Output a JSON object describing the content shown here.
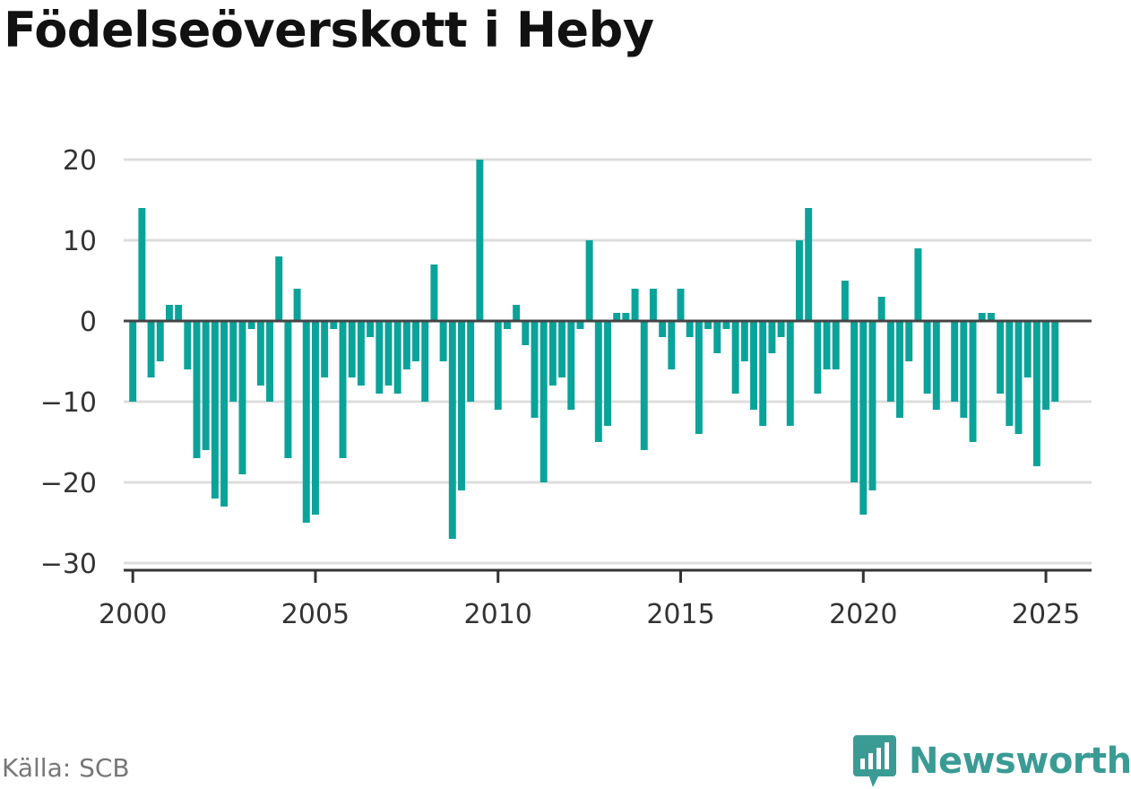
{
  "title": "Födelseöverskott i Heby",
  "source": "Källa: SCB",
  "brand": {
    "name": "Newsworthy",
    "icon": "newsworthy-logo-icon",
    "color": "#3a9b95"
  },
  "chart_data": {
    "type": "bar",
    "title": "Födelseöverskott i Heby",
    "xlabel": "",
    "ylabel": "",
    "x_start": 2000.0,
    "x_step": 0.25,
    "values": [
      -10,
      14,
      -7,
      -5,
      2,
      2,
      -6,
      -17,
      -16,
      -22,
      -23,
      -10,
      -19,
      -1,
      -8,
      -10,
      8,
      -17,
      4,
      -25,
      -24,
      -7,
      -1,
      -17,
      -7,
      -8,
      -2,
      -9,
      -8,
      -9,
      -6,
      -5,
      -10,
      7,
      -5,
      -27,
      -21,
      -10,
      20,
      0,
      -11,
      -1,
      2,
      -3,
      -12,
      -20,
      -8,
      -7,
      -11,
      -1,
      10,
      -15,
      -13,
      1,
      1,
      4,
      -16,
      4,
      -2,
      -6,
      4,
      -2,
      -14,
      -1,
      -4,
      -1,
      -9,
      -5,
      -11,
      -13,
      -4,
      -2,
      -13,
      10,
      14,
      -9,
      -6,
      -6,
      5,
      -20,
      -24,
      -21,
      3,
      -10,
      -12,
      -5,
      9,
      -9,
      -11,
      0,
      -10,
      -12,
      -15,
      1,
      1,
      -9,
      -13,
      -14,
      -7,
      -18,
      -11,
      -10
    ],
    "ylim": [
      -30,
      20
    ],
    "yticks": [
      20,
      10,
      0,
      -10,
      -20,
      -30
    ],
    "ytick_labels": [
      "20",
      "10",
      "0",
      "−10",
      "−20",
      "−30"
    ],
    "xlim": [
      1999.75,
      2026.25
    ],
    "xticks": [
      2000,
      2005,
      2010,
      2015,
      2020,
      2025
    ],
    "xtick_labels": [
      "2000",
      "2005",
      "2010",
      "2015",
      "2020",
      "2025"
    ],
    "grid": true,
    "bar_color": "#0aa39a",
    "grid_color": "#dddddd",
    "zero_line_color": "#444444"
  }
}
